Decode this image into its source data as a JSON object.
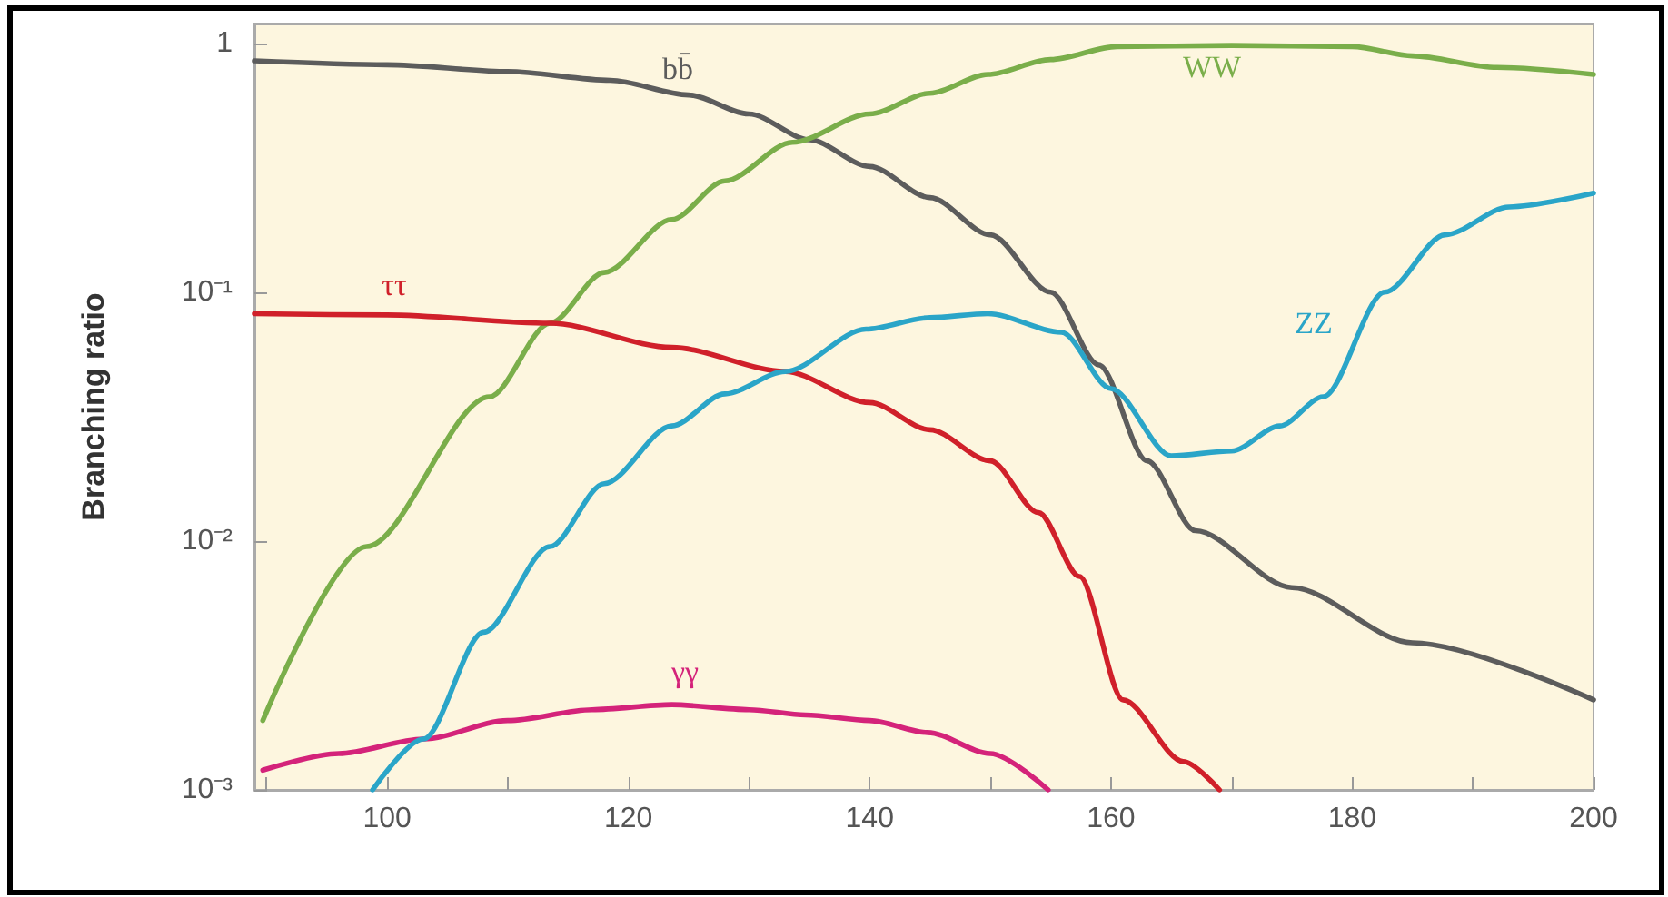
{
  "chart_data": {
    "type": "line",
    "ylabel": "Branching ratio",
    "log": "y",
    "grid": false,
    "legend": false,
    "marker": "none",
    "line_style": "solid",
    "xlim": [
      89,
      200
    ],
    "xticks": [
      {
        "value": 90,
        "label": null
      },
      100,
      {
        "value": 110,
        "label": null
      },
      120,
      {
        "value": 130,
        "label": null
      },
      140,
      {
        "value": 150,
        "label": null
      },
      160,
      {
        "value": 170,
        "label": null
      },
      180,
      {
        "value": 190,
        "label": null
      },
      200
    ],
    "ylim": [
      0.001,
      1.2
    ],
    "yticks": [
      {
        "value": 0.001,
        "label": "10⁻³"
      },
      {
        "value": 0.01,
        "label": "10⁻²"
      },
      {
        "value": 0.1,
        "label": "10⁻¹"
      },
      1
    ],
    "series": [
      {
        "name": "bb̄",
        "color": "#5c5c5c",
        "x": [
          89,
          100,
          110,
          118.5,
          125,
          130,
          135,
          140,
          145,
          150,
          155,
          159,
          163,
          167,
          175,
          185,
          200
        ],
        "values": [
          0.85,
          0.82,
          0.77,
          0.71,
          0.62,
          0.52,
          0.41,
          0.32,
          0.24,
          0.17,
          0.1,
          0.051,
          0.021,
          0.011,
          0.0065,
          0.0039,
          0.0023
        ]
      },
      {
        "name": "WW",
        "color": "#7aae4a",
        "x": [
          89.7,
          98.3,
          108.5,
          113.5,
          118,
          123.6,
          128,
          133.6,
          140,
          145,
          149.8,
          155,
          160.5,
          170,
          180,
          185,
          192,
          200
        ],
        "values": [
          0.0019,
          0.0095,
          0.038,
          0.075,
          0.12,
          0.196,
          0.28,
          0.4,
          0.52,
          0.63,
          0.75,
          0.86,
          0.97,
          0.98,
          0.97,
          0.89,
          0.8,
          0.75
        ]
      },
      {
        "name": "ττ",
        "color": "#d0202a",
        "x": [
          89,
          100,
          113.5,
          123.6,
          133,
          140,
          145,
          150,
          154,
          157.4,
          161,
          166,
          169
        ],
        "values": [
          0.082,
          0.081,
          0.075,
          0.06,
          0.048,
          0.036,
          0.028,
          0.021,
          0.013,
          0.0072,
          0.0023,
          0.0013,
          0.001
        ]
      },
      {
        "name": "γγ",
        "color": "#d4237a",
        "x": [
          89.7,
          96,
          103,
          110,
          117,
          123.6,
          130,
          134.7,
          140,
          144.8,
          150,
          154.8
        ],
        "values": [
          0.0012,
          0.0014,
          0.0016,
          0.0019,
          0.0021,
          0.0022,
          0.0021,
          0.002,
          0.0019,
          0.0017,
          0.0014,
          0.001
        ]
      },
      {
        "name": "ZZ",
        "color": "#2aa5c8",
        "x": [
          98.8,
          103,
          108,
          113.5,
          118,
          123.6,
          128,
          133,
          139.7,
          145,
          149.8,
          155.9,
          160,
          165,
          170,
          174,
          177.6,
          182.7,
          187.7,
          193,
          200
        ],
        "values": [
          0.001,
          0.0016,
          0.0043,
          0.0095,
          0.017,
          0.029,
          0.039,
          0.048,
          0.071,
          0.079,
          0.082,
          0.069,
          0.041,
          0.022,
          0.023,
          0.029,
          0.038,
          0.1,
          0.17,
          0.22,
          0.25
        ]
      }
    ]
  }
}
